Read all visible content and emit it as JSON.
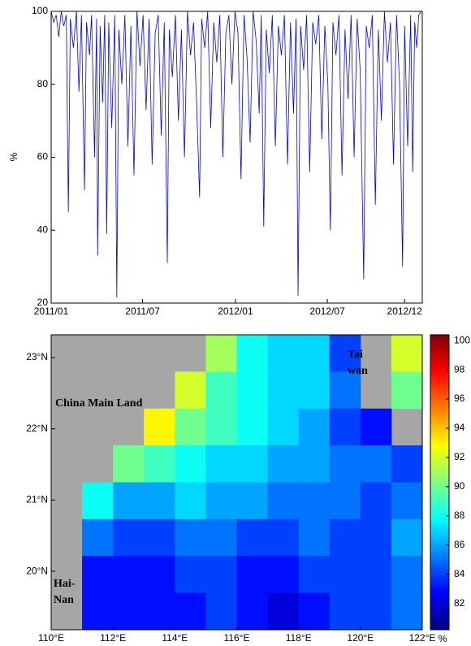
{
  "chart_data": [
    {
      "type": "line",
      "ylabel": "%",
      "x": [
        0,
        5,
        10,
        15,
        20,
        25,
        30,
        34,
        38,
        44,
        50,
        55,
        60,
        66,
        70,
        76,
        80,
        86,
        90,
        92,
        97,
        102,
        106,
        110,
        114,
        120,
        126,
        130,
        134,
        140,
        146,
        152,
        158,
        164,
        170,
        176,
        182,
        188,
        194,
        200,
        206,
        212,
        218,
        224,
        230,
        234,
        240,
        246,
        252,
        258,
        264,
        270,
        276,
        282,
        288,
        294,
        298,
        304,
        310,
        316,
        322,
        328,
        334,
        340,
        346,
        352,
        358,
        364,
        370,
        376,
        382,
        388,
        394,
        400,
        406,
        412,
        416,
        421,
        426,
        432,
        438,
        444,
        450,
        456,
        462,
        468,
        474,
        480,
        485,
        489,
        494,
        500,
        506,
        512,
        518,
        524,
        530,
        536,
        542,
        548,
        553,
        558,
        564,
        570,
        576,
        582,
        588,
        594,
        600,
        606,
        612,
        619,
        624,
        630,
        636,
        642,
        648,
        654,
        660,
        666,
        672,
        678,
        684,
        690,
        696,
        700,
        706,
        712,
        716,
        720,
        724,
        728,
        733
      ],
      "series": [
        {
          "color": "#0000ff",
          "values": [
            100,
            97,
            99,
            93,
            100,
            96,
            99,
            45,
            98,
            90,
            100,
            78,
            99,
            51,
            97,
            88,
            99,
            60,
            98,
            33,
            96,
            75,
            99,
            39,
            97,
            68,
            99,
            21.5,
            95,
            80,
            99,
            63,
            96,
            55,
            100,
            85,
            99,
            73,
            98,
            58,
            94,
            99,
            66,
            97,
            31,
            95,
            82,
            99,
            70,
            95,
            60,
            100,
            88,
            97,
            75,
            49,
            98,
            90,
            100,
            68,
            97,
            86,
            99,
            60,
            94,
            99,
            80,
            100,
            94,
            54,
            99,
            87,
            64,
            100,
            92,
            72,
            99,
            41,
            95,
            83,
            99,
            63,
            96,
            88,
            99,
            58,
            97,
            72,
            98,
            22,
            96,
            84,
            99,
            56,
            97,
            91,
            99,
            65,
            96,
            80,
            40,
            97,
            88,
            99,
            55,
            95,
            76,
            99,
            60,
            98,
            84,
            26.5,
            96,
            90,
            99,
            47,
            95,
            70,
            100,
            86,
            97,
            58,
            99,
            80,
            30,
            96,
            63,
            99,
            56,
            97,
            90,
            99,
            100
          ]
        }
      ],
      "xlim": [
        0,
        735
      ],
      "ylim": [
        20,
        100
      ],
      "xticks": [
        {
          "value": 0,
          "label": "2011/01"
        },
        {
          "value": 181,
          "label": "2011/07"
        },
        {
          "value": 365,
          "label": "2012/01"
        },
        {
          "value": 547,
          "label": "2012/07"
        },
        {
          "value": 700,
          "label": "2012/12"
        }
      ],
      "yticks": [
        20,
        40,
        60,
        80,
        100
      ]
    },
    {
      "type": "heatmap",
      "colormap": "jet",
      "land_color": "#a6a6a6",
      "xlim": [
        110,
        122
      ],
      "ylim": [
        19.18,
        23.32
      ],
      "clim": [
        80.2,
        100.4
      ],
      "xticks": [
        {
          "value": 110,
          "label": "110°E"
        },
        {
          "value": 112,
          "label": "112°E"
        },
        {
          "value": 114,
          "label": "114°E"
        },
        {
          "value": 116,
          "label": "116°E"
        },
        {
          "value": 118,
          "label": "118°E"
        },
        {
          "value": 120,
          "label": "120°E"
        },
        {
          "value": 122,
          "label": "122°E"
        }
      ],
      "yticks": [
        {
          "value": 20,
          "label": "20°N"
        },
        {
          "value": 21,
          "label": "21°N"
        },
        {
          "value": 22,
          "label": "22°N"
        },
        {
          "value": 23,
          "label": "23°N"
        }
      ],
      "cticks": [
        82,
        84,
        86,
        88,
        90,
        92,
        94,
        96,
        98,
        100
      ],
      "clabel": "%",
      "annotations": [
        "China Main Land",
        [
          "Tai",
          "wan"
        ],
        [
          "Hai-",
          "Nan"
        ]
      ],
      "values": [
        [
          null,
          null,
          null,
          null,
          null,
          91,
          88,
          87,
          87,
          84,
          null,
          92
        ],
        [
          null,
          null,
          null,
          null,
          92,
          89,
          88,
          87,
          87,
          85,
          null,
          90
        ],
        [
          null,
          null,
          null,
          93,
          90,
          89,
          88,
          87,
          86,
          84,
          83,
          null
        ],
        [
          null,
          null,
          90,
          89,
          88,
          87,
          87,
          86,
          86,
          85,
          85,
          84
        ],
        [
          null,
          88,
          86,
          86,
          87,
          86,
          86,
          85,
          85,
          85,
          84,
          85
        ],
        [
          null,
          85,
          84,
          84,
          85,
          85,
          84,
          84,
          85,
          84,
          84,
          86
        ],
        [
          null,
          83,
          83,
          83,
          84,
          84,
          83,
          83,
          84,
          84,
          84,
          85
        ],
        [
          null,
          83,
          83,
          83,
          83,
          84,
          83,
          82,
          83,
          84,
          84,
          85
        ]
      ]
    }
  ]
}
